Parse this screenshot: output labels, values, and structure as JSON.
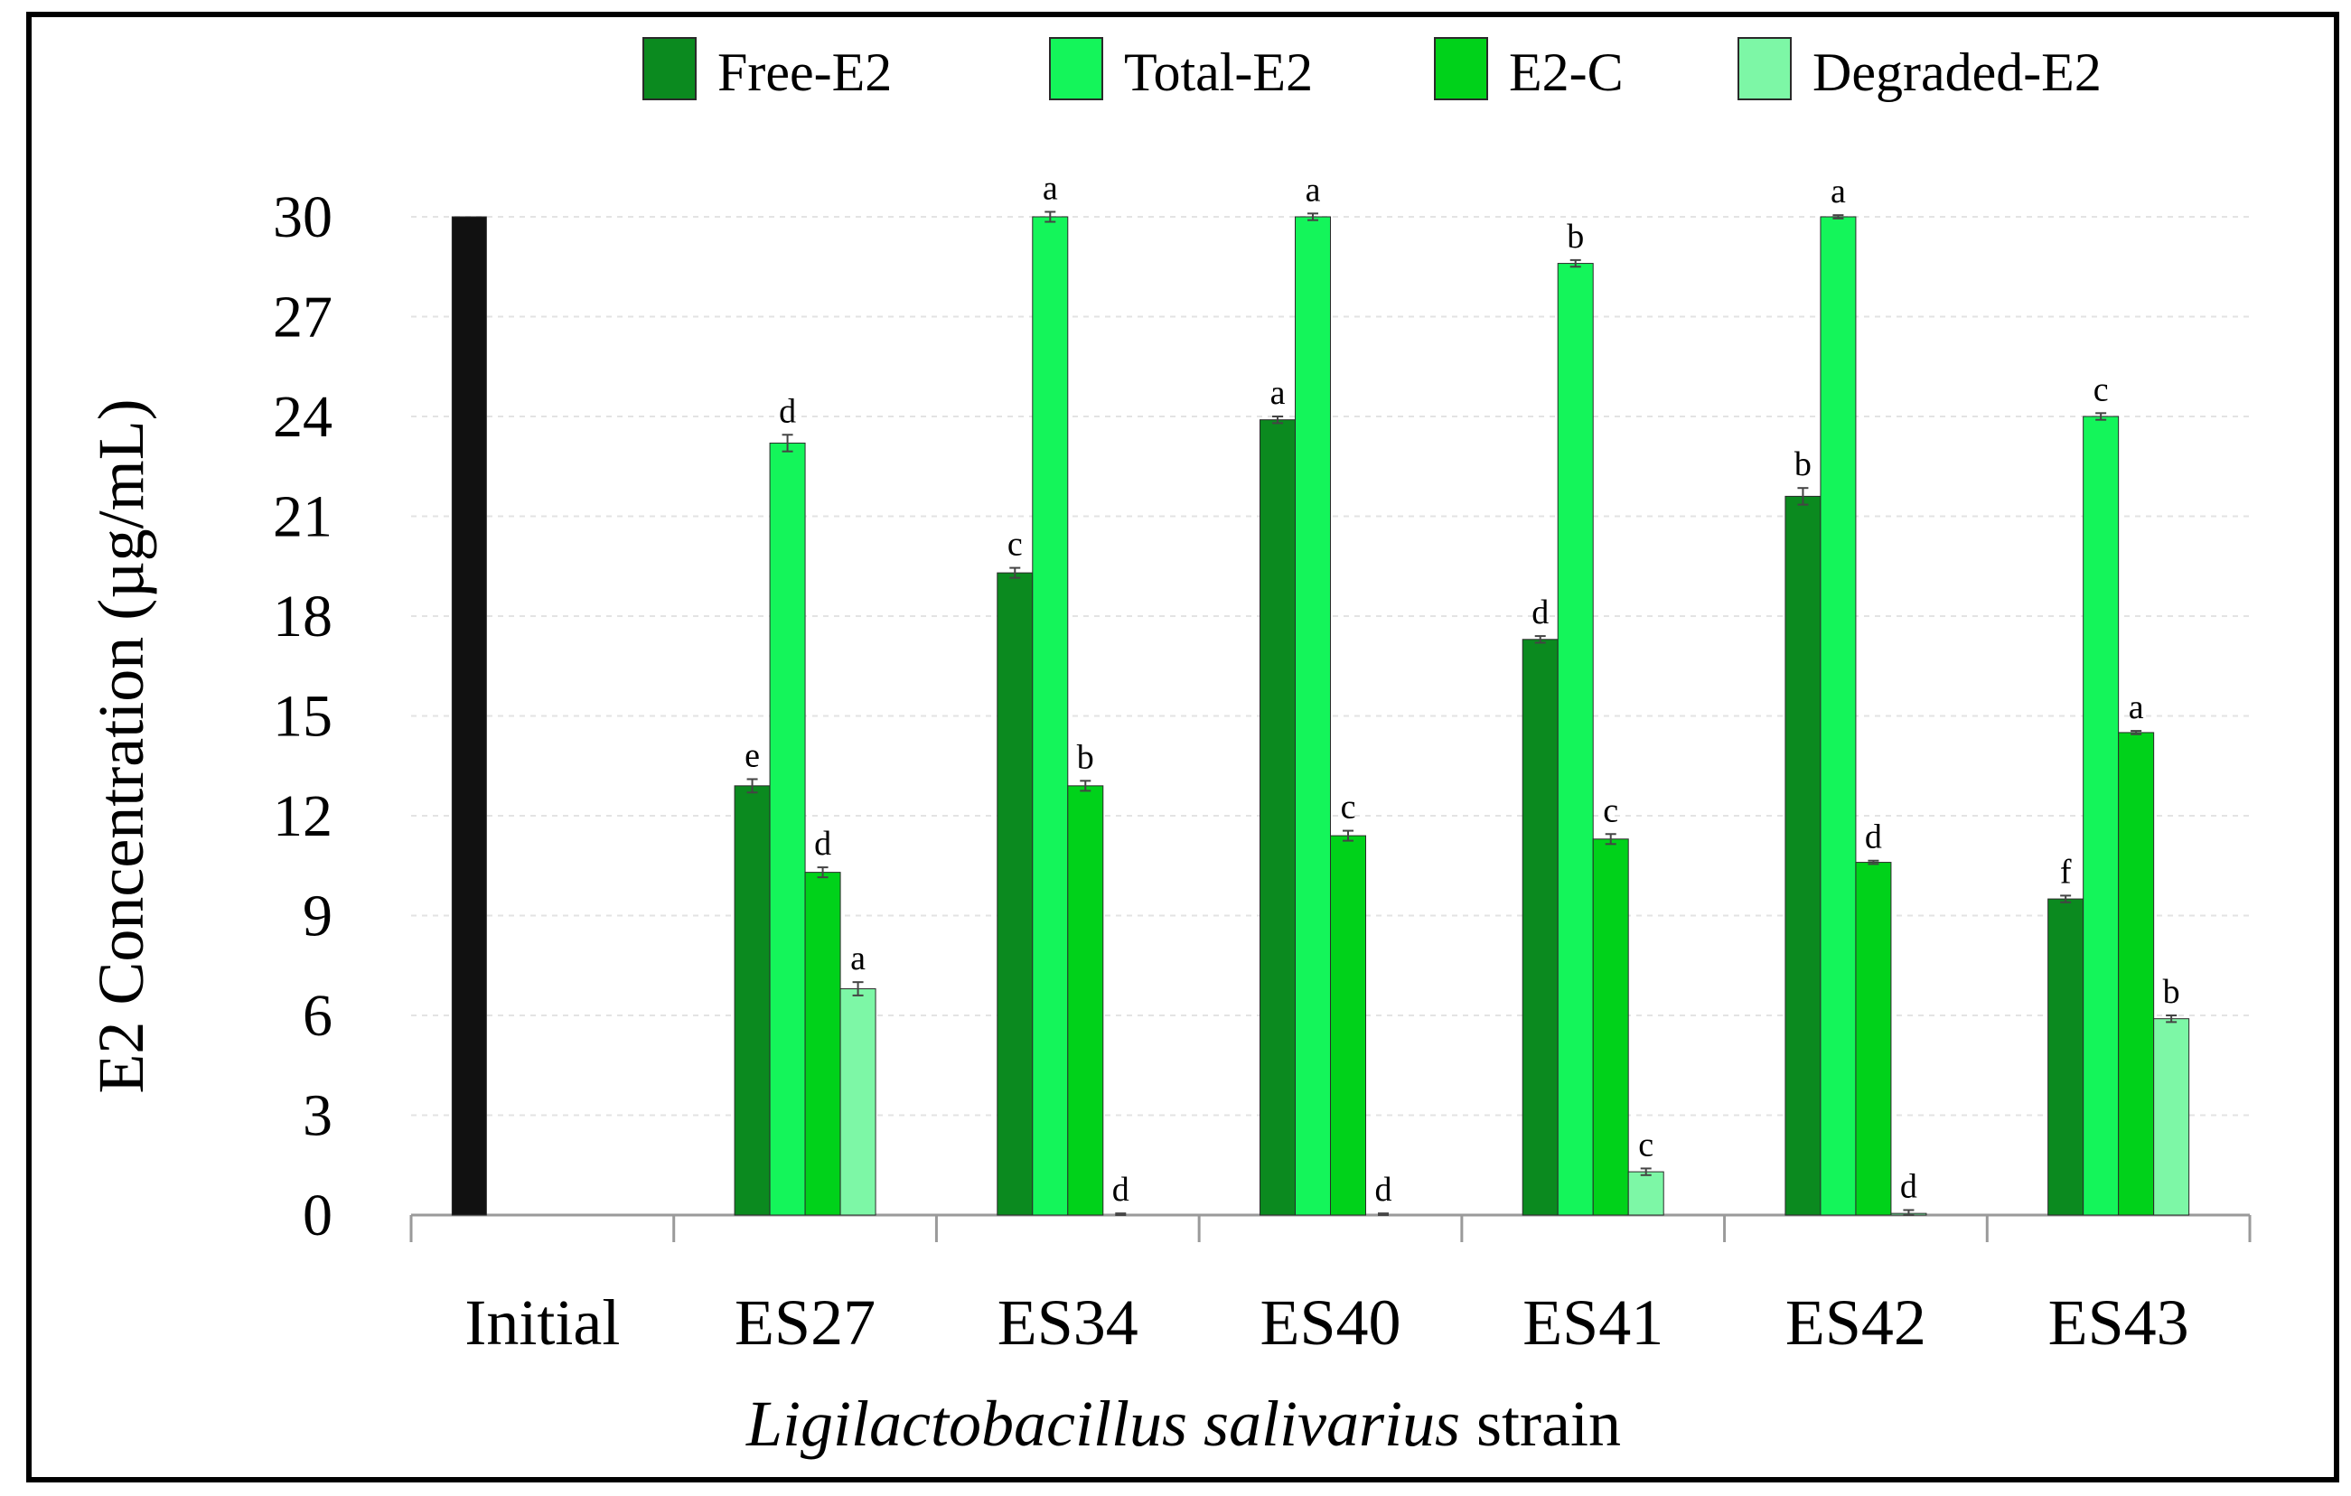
{
  "chart_data": {
    "type": "bar",
    "ylabel": "E2 Concentration (µg/mL)",
    "xlabel_italic": "Ligilactobacillus salivarius",
    "xlabel_rest": " strain",
    "ylim": [
      0,
      30
    ],
    "yticks": [
      0,
      3,
      6,
      9,
      12,
      15,
      18,
      21,
      24,
      27,
      30
    ],
    "categories": [
      "Initial",
      "ES27",
      "ES34",
      "ES40",
      "ES41",
      "ES42",
      "ES43"
    ],
    "initial": {
      "name": "Initial",
      "value": 30,
      "color": "#111111"
    },
    "series": [
      {
        "name": "Free-E2",
        "color": "#0b8a1f",
        "values": [
          null,
          12.9,
          19.3,
          23.9,
          17.3,
          21.6,
          9.5
        ],
        "errors": [
          null,
          0.2,
          0.15,
          0.1,
          0.1,
          0.25,
          0.1
        ],
        "letters": [
          null,
          "e",
          "c",
          "a",
          "d",
          "b",
          "f"
        ]
      },
      {
        "name": "Total-E2",
        "color": "#14f55a",
        "values": [
          null,
          23.2,
          30.0,
          30.0,
          28.6,
          30.0,
          24.0
        ],
        "errors": [
          null,
          0.25,
          0.15,
          0.1,
          0.1,
          0.05,
          0.1
        ],
        "letters": [
          null,
          "d",
          "a",
          "a",
          "b",
          "a",
          "c"
        ]
      },
      {
        "name": "E2-C",
        "color": "#00d21a",
        "values": [
          null,
          10.3,
          12.9,
          11.4,
          11.3,
          10.6,
          14.5
        ],
        "errors": [
          null,
          0.15,
          0.15,
          0.15,
          0.15,
          0.05,
          0.05
        ],
        "letters": [
          null,
          "d",
          "b",
          "c",
          "c",
          "d",
          "a"
        ]
      },
      {
        "name": "Degraded-E2",
        "color": "#7df7a6",
        "values": [
          null,
          6.8,
          0.0,
          0.0,
          1.3,
          0.05,
          5.9
        ],
        "errors": [
          null,
          0.2,
          0.05,
          0.05,
          0.1,
          0.1,
          0.1
        ],
        "letters": [
          null,
          "a",
          "d",
          "d",
          "c",
          "d",
          "b"
        ]
      }
    ],
    "grid": true,
    "legend_position": "top"
  }
}
